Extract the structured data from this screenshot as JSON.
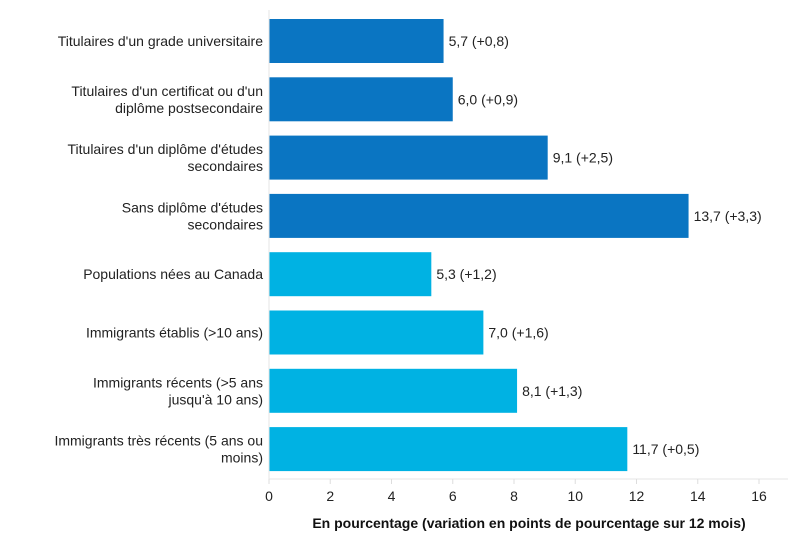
{
  "chart_data": {
    "type": "bar",
    "orientation": "horizontal",
    "categories": [
      [
        "Titulaires d'un grade universitaire"
      ],
      [
        "Titulaires d'un certificat ou d'un",
        "diplôme postsecondaire"
      ],
      [
        "Titulaires d'un diplôme d'études",
        "secondaires"
      ],
      [
        "Sans diplôme d'études",
        "secondaires"
      ],
      [
        "Populations nées au Canada"
      ],
      [
        "Immigrants établis (>10 ans)"
      ],
      [
        "Immigrants récents (>5 ans",
        "jusqu'à 10 ans)"
      ],
      [
        "Immigrants très récents (5 ans ou",
        "moins)"
      ]
    ],
    "values": [
      5.7,
      6.0,
      9.1,
      13.7,
      5.3,
      7.0,
      8.1,
      11.7
    ],
    "changes": [
      0.8,
      0.9,
      2.5,
      3.3,
      1.2,
      1.6,
      1.3,
      0.5
    ],
    "data_labels": [
      "5,7 (+0,8)",
      "6,0 (+0,9)",
      "9,1 (+2,5)",
      "13,7 (+3,3)",
      "5,3 (+1,2)",
      "7,0 (+1,6)",
      "8,1 (+1,3)",
      "11,7 (+0,5)"
    ],
    "bar_colors": [
      "#0a75c2",
      "#0a75c2",
      "#0a75c2",
      "#0a75c2",
      "#00b2e3",
      "#00b2e3",
      "#00b2e3",
      "#00b2e3"
    ],
    "xlabel": "En pourcentage (variation en points de pourcentage sur 12 mois)",
    "xlim": [
      0,
      16
    ],
    "xticks": [
      "0",
      "2",
      "4",
      "6",
      "8",
      "10",
      "12",
      "14",
      "16"
    ],
    "grid": false
  }
}
